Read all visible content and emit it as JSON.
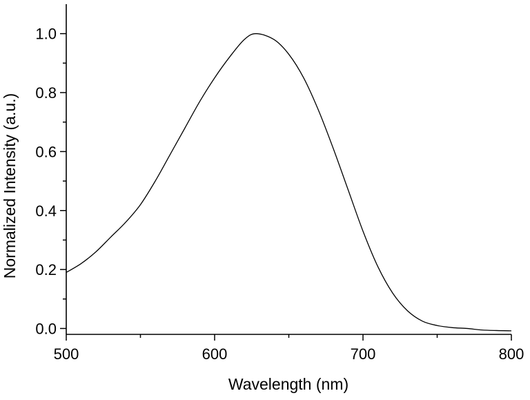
{
  "chart_data": {
    "type": "line",
    "title": "",
    "xlabel": "Wavelength (nm)",
    "ylabel": "Normalized Intensity (a.u.)",
    "xlim": [
      500,
      800
    ],
    "ylim": [
      -0.02,
      1.1
    ],
    "x_ticks": [
      500,
      600,
      700,
      800
    ],
    "x_tick_labels": [
      "500",
      "600",
      "700",
      "800"
    ],
    "y_ticks": [
      0.0,
      0.2,
      0.4,
      0.6,
      0.8,
      1.0
    ],
    "y_tick_labels": [
      "0.0",
      "0.2",
      "0.4",
      "0.6",
      "0.8",
      "1.0"
    ],
    "grid": false,
    "legend": "none",
    "line_color": "#000000",
    "series": [
      {
        "x": [
          500,
          510,
          520,
          530,
          540,
          550,
          560,
          570,
          580,
          590,
          600,
          610,
          620,
          628,
          640,
          650,
          660,
          670,
          680,
          690,
          700,
          710,
          720,
          730,
          740,
          750,
          760,
          770,
          780,
          790,
          800
        ],
        "values": [
          0.19,
          0.22,
          0.26,
          0.31,
          0.36,
          0.42,
          0.5,
          0.59,
          0.68,
          0.77,
          0.85,
          0.92,
          0.98,
          1.0,
          0.98,
          0.93,
          0.85,
          0.74,
          0.61,
          0.47,
          0.33,
          0.21,
          0.12,
          0.06,
          0.025,
          0.01,
          0.003,
          0.0,
          -0.005,
          -0.007,
          -0.008
        ]
      }
    ]
  }
}
